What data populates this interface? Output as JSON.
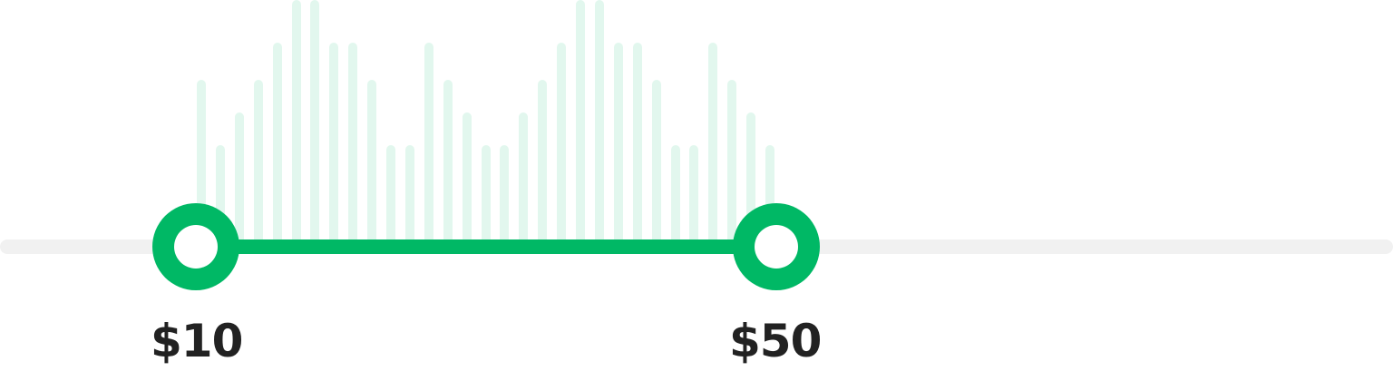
{
  "price_slider": {
    "min_label": "$10",
    "max_label": "$50",
    "selected_min": 10,
    "selected_max": 50,
    "histogram_levels": [
      5,
      3,
      4,
      5,
      6,
      7,
      7,
      6,
      6,
      5,
      3,
      3,
      6,
      5,
      4,
      3,
      3,
      4,
      5,
      6,
      7,
      7,
      6,
      6,
      5,
      3,
      3,
      6,
      5,
      4,
      3
    ],
    "colors": {
      "accent": "#00b865",
      "track": "#f1f1f1",
      "histogram_bar": "#e2f7ee",
      "label_text": "#222222"
    }
  }
}
